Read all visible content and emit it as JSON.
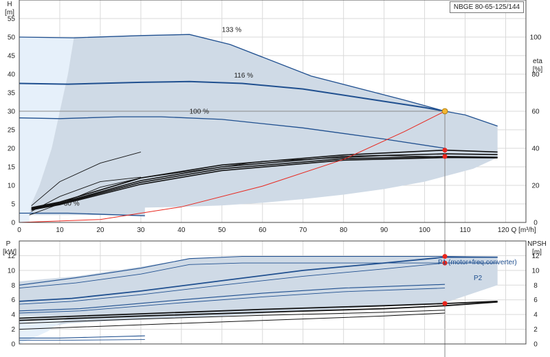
{
  "colors": {
    "envelope_fill": "#cfdae6",
    "envelope_light": "#e6f0fa",
    "curve_blue": "#1f4f8f",
    "curve_black": "#111111",
    "system_curve": "#e8261d",
    "duty_point": "#f3b632",
    "marker_red": "#e8261d",
    "grid": "#d9d9d9"
  },
  "model_label": "NBGE 80-65-125/144",
  "chart_data": [
    {
      "type": "line",
      "id": "head",
      "xlabel": "Q [m³/h]",
      "ylabel": "H",
      "yunit": "[m]",
      "y2label": "eta",
      "y2unit": "[%]",
      "xlim": [
        0,
        125
      ],
      "ylim": [
        0,
        60
      ],
      "y2lim": [
        0,
        120
      ],
      "x_ticks": [
        0,
        10,
        20,
        30,
        40,
        50,
        60,
        70,
        80,
        90,
        100,
        110,
        120
      ],
      "y_ticks": [
        0,
        5,
        10,
        15,
        20,
        25,
        30,
        35,
        40,
        45,
        50,
        55
      ],
      "y2_ticks": [
        0,
        20,
        40,
        60,
        80,
        100
      ],
      "grid": true,
      "envelope": [
        [
          2.5,
          2
        ],
        [
          3,
          5
        ],
        [
          5,
          10
        ],
        [
          8,
          20
        ],
        [
          10,
          30
        ],
        [
          12,
          40
        ],
        [
          13.5,
          50
        ],
        [
          42,
          50.8
        ],
        [
          52,
          48
        ],
        [
          72,
          39.5
        ],
        [
          95,
          33
        ],
        [
          105,
          30
        ],
        [
          110,
          29
        ],
        [
          118,
          26
        ],
        [
          118,
          17.5
        ],
        [
          112,
          14.5
        ],
        [
          100,
          11
        ],
        [
          90,
          9
        ],
        [
          80,
          7.5
        ],
        [
          70,
          6.3
        ],
        [
          60,
          5.3
        ],
        [
          50,
          4.6
        ],
        [
          40,
          4.2
        ],
        [
          31,
          4
        ],
        [
          31,
          2
        ]
      ],
      "envelope_light": [
        [
          0,
          0
        ],
        [
          0,
          50
        ],
        [
          13.5,
          50
        ],
        [
          12,
          40
        ],
        [
          10,
          30
        ],
        [
          8,
          20
        ],
        [
          5,
          10
        ],
        [
          3,
          5
        ],
        [
          2.5,
          2
        ],
        [
          2.5,
          0
        ]
      ],
      "speed_curves": [
        {
          "label": "133 %",
          "points": [
            [
              0,
              50
            ],
            [
              13.5,
              49.8
            ],
            [
              30,
              50.4
            ],
            [
              42,
              50.7
            ],
            [
              52,
              48
            ],
            [
              72,
              39.5
            ],
            [
              95,
              33
            ],
            [
              105,
              30
            ],
            [
              110,
              29
            ],
            [
              118,
              26
            ]
          ]
        },
        {
          "label": "116 %",
          "points": [
            [
              0,
              37.5
            ],
            [
              12,
              37.3
            ],
            [
              30,
              37.8
            ],
            [
              42,
              38
            ],
            [
              55,
              37.5
            ],
            [
              70,
              36
            ],
            [
              85,
              33.5
            ],
            [
              100,
              31
            ],
            [
              105,
              30
            ]
          ]
        },
        {
          "label": "100 %",
          "points": [
            [
              0,
              28.2
            ],
            [
              10,
              28
            ],
            [
              25,
              28.5
            ],
            [
              35,
              28.5
            ],
            [
              50,
              27.8
            ],
            [
              70,
              25.5
            ],
            [
              90,
              22.5
            ],
            [
              105,
              20
            ]
          ]
        },
        {
          "label": "30 %",
          "points": [
            [
              0,
              2.5
            ],
            [
              12,
              2.5
            ],
            [
              31,
              1.8
            ]
          ]
        }
      ],
      "efficiency_curves": [
        [
          [
            3,
            4
          ],
          [
            10,
            5.5
          ],
          [
            30,
            12
          ],
          [
            50,
            15.5
          ],
          [
            80,
            18.2
          ],
          [
            105,
            19.5
          ],
          [
            118,
            19
          ]
        ],
        [
          [
            3,
            3.8
          ],
          [
            10,
            5.2
          ],
          [
            30,
            11.3
          ],
          [
            50,
            15
          ],
          [
            80,
            17.8
          ],
          [
            105,
            18.5
          ],
          [
            118,
            18.3
          ]
        ],
        [
          [
            3,
            3.6
          ],
          [
            10,
            5
          ],
          [
            30,
            10.8
          ],
          [
            50,
            14.5
          ],
          [
            80,
            17.2
          ],
          [
            105,
            17.8
          ],
          [
            118,
            17.6
          ]
        ],
        [
          [
            3,
            3.4
          ],
          [
            10,
            4.8
          ],
          [
            30,
            10.3
          ],
          [
            50,
            14
          ],
          [
            80,
            16.8
          ],
          [
            105,
            17.5
          ],
          [
            118,
            17.4
          ]
        ],
        [
          [
            2.5,
            2
          ],
          [
            10,
            5
          ],
          [
            20,
            9.5
          ],
          [
            30,
            12
          ],
          [
            60,
            16.5
          ],
          [
            90,
            18
          ],
          [
            118,
            17.5
          ]
        ],
        [
          [
            3,
            4.5
          ],
          [
            10,
            11
          ],
          [
            20,
            16
          ],
          [
            30,
            19
          ]
        ],
        [
          [
            3,
            3
          ],
          [
            10,
            7
          ],
          [
            20,
            11
          ],
          [
            30,
            12.2
          ]
        ]
      ],
      "system_curve": [
        [
          0,
          0
        ],
        [
          20,
          0.8
        ],
        [
          40,
          4.2
        ],
        [
          60,
          9.8
        ],
        [
          80,
          17
        ],
        [
          95,
          24.5
        ],
        [
          105,
          30
        ]
      ],
      "duty_point": {
        "q": 105,
        "h": 30
      },
      "eta_markers": [
        [
          105,
          19.5
        ],
        [
          105,
          17.8
        ]
      ],
      "speed_label_positions": {
        "133 %": [
          50,
          50.8
        ],
        "116 %": [
          53,
          38.5
        ],
        "100 %": [
          42,
          28.8
        ],
        "30 %": [
          11,
          4
        ]
      }
    },
    {
      "type": "line",
      "id": "power",
      "ylabel": "P",
      "yunit": "[kW]",
      "y2label": "NPSH",
      "y2unit": "[m]",
      "xlim": [
        0,
        125
      ],
      "ylim": [
        0,
        14
      ],
      "y_ticks": [
        0,
        2,
        4,
        6,
        8,
        10,
        12
      ],
      "y2_ticks": [
        0,
        2,
        4,
        6,
        8,
        10,
        12
      ],
      "grid": true,
      "envelope": [
        [
          0,
          0
        ],
        [
          0,
          8.5
        ],
        [
          14,
          9.2
        ],
        [
          30,
          10.5
        ],
        [
          42,
          11.6
        ],
        [
          55,
          11.9
        ],
        [
          90,
          11.9
        ],
        [
          105,
          11.8
        ],
        [
          118,
          11.8
        ],
        [
          118,
          8
        ],
        [
          105,
          5.6
        ],
        [
          80,
          4.8
        ],
        [
          50,
          3.8
        ],
        [
          25,
          3.2
        ],
        [
          12,
          2.8
        ],
        [
          3,
          2
        ]
      ],
      "envelope_light": [
        [
          0,
          0
        ],
        [
          0,
          3.8
        ],
        [
          12,
          3.8
        ],
        [
          11,
          3.2
        ],
        [
          9,
          2.5
        ],
        [
          7,
          1.7
        ],
        [
          5,
          1.2
        ],
        [
          3,
          0.7
        ]
      ],
      "p1_curves": [
        [
          [
            0,
            8
          ],
          [
            14,
            9
          ],
          [
            30,
            10.3
          ],
          [
            42,
            11.6
          ],
          [
            55,
            11.9
          ],
          [
            90,
            11.9
          ],
          [
            105,
            11.9
          ],
          [
            118,
            11.8
          ]
        ],
        [
          [
            0,
            5.8
          ],
          [
            13,
            6.2
          ],
          [
            30,
            7.2
          ],
          [
            50,
            8.6
          ],
          [
            70,
            10
          ],
          [
            90,
            11
          ],
          [
            105,
            11.8
          ],
          [
            118,
            11.8
          ]
        ],
        [
          [
            0,
            4.5
          ],
          [
            15,
            4.8
          ],
          [
            40,
            6
          ],
          [
            60,
            6.9
          ],
          [
            80,
            7.6
          ],
          [
            105,
            8.1
          ]
        ],
        [
          [
            0,
            0.8
          ],
          [
            10,
            0.8
          ],
          [
            31,
            1.1
          ]
        ]
      ],
      "p2_curves": [
        [
          [
            0,
            7.6
          ],
          [
            14,
            8.3
          ],
          [
            30,
            9.5
          ],
          [
            42,
            10.8
          ],
          [
            55,
            11
          ],
          [
            90,
            11
          ],
          [
            105,
            11
          ],
          [
            118,
            11
          ]
        ],
        [
          [
            0,
            5.4
          ],
          [
            13,
            5.8
          ],
          [
            30,
            6.7
          ],
          [
            50,
            8
          ],
          [
            70,
            9.2
          ],
          [
            90,
            10.2
          ],
          [
            105,
            11
          ],
          [
            118,
            11
          ]
        ],
        [
          [
            0,
            4.2
          ],
          [
            15,
            4.5
          ],
          [
            40,
            5.6
          ],
          [
            60,
            6.4
          ],
          [
            80,
            7.1
          ],
          [
            105,
            7.6
          ]
        ],
        [
          [
            0,
            0.5
          ],
          [
            10,
            0.5
          ],
          [
            31,
            0.6
          ]
        ]
      ],
      "npsh_curves": [
        [
          [
            0,
            3.5
          ],
          [
            30,
            4.1
          ],
          [
            60,
            4.7
          ],
          [
            90,
            5.2
          ],
          [
            105,
            5.5
          ],
          [
            118,
            5.8
          ]
        ],
        [
          [
            0,
            3.2
          ],
          [
            30,
            3.8
          ],
          [
            60,
            4.3
          ],
          [
            90,
            4.8
          ],
          [
            105,
            5.2
          ],
          [
            118,
            5.7
          ]
        ],
        [
          [
            0,
            2.8
          ],
          [
            30,
            3.4
          ],
          [
            60,
            3.9
          ],
          [
            90,
            4.3
          ],
          [
            105,
            4.6
          ]
        ],
        [
          [
            0,
            2
          ],
          [
            30,
            2.6
          ],
          [
            60,
            3.2
          ],
          [
            90,
            3.8
          ],
          [
            105,
            4.2
          ]
        ]
      ],
      "markers": [
        [
          105,
          11.9
        ],
        [
          105,
          11
        ],
        [
          105,
          5.5
        ]
      ],
      "labels": {
        "p1": "P1 (motor+freq.converter)",
        "p2": "P2"
      }
    }
  ]
}
